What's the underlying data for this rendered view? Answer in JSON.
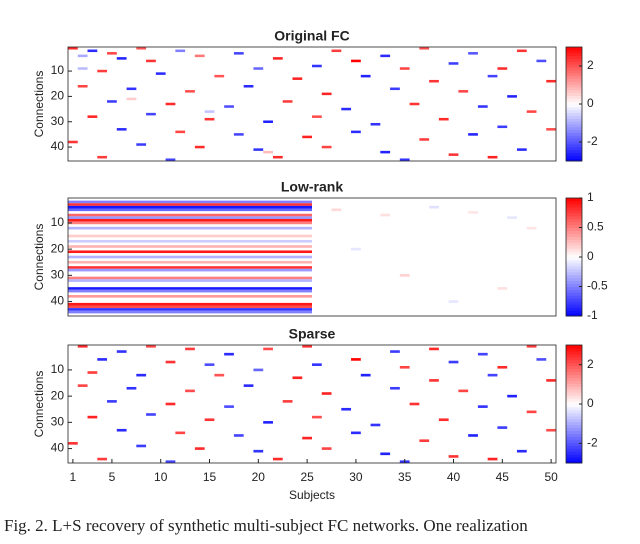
{
  "caption": "Fig. 2.  L+S recovery of synthetic multi-subject FC networks. One realization",
  "chart_data": [
    {
      "type": "heatmap",
      "title": "Original FC",
      "y_label": "Connections",
      "xlim": [
        0.5,
        50.5
      ],
      "ylim": [
        45.5,
        0.5
      ],
      "yticks": [
        10,
        20,
        30,
        40
      ],
      "clim": [
        -3,
        3
      ],
      "cticks": [
        -2,
        0,
        2
      ],
      "colors": [
        "#0000ff",
        "#ffffff",
        "#ff0000"
      ],
      "cells": [
        [
          1,
          1,
          2.5
        ],
        [
          3,
          2,
          -2.5
        ],
        [
          5,
          3,
          2.2
        ],
        [
          8,
          1,
          2
        ],
        [
          12,
          2,
          -1.5
        ],
        [
          2,
          4,
          -1
        ],
        [
          6,
          5,
          -2.6
        ],
        [
          9,
          6,
          2.4
        ],
        [
          14,
          4,
          1.6
        ],
        [
          18,
          3,
          -2.2
        ],
        [
          22,
          5,
          2.6
        ],
        [
          28,
          2,
          2.3
        ],
        [
          33,
          4,
          -2.5
        ],
        [
          37,
          1,
          2.1
        ],
        [
          42,
          3,
          -2
        ],
        [
          47,
          2,
          2.4
        ],
        [
          30,
          6,
          3
        ],
        [
          26,
          8,
          -2.4
        ],
        [
          35,
          9,
          2.2
        ],
        [
          40,
          7,
          -2.3
        ],
        [
          45,
          9,
          2.5
        ],
        [
          49,
          6,
          -2.1
        ],
        [
          4,
          10,
          2.3
        ],
        [
          10,
          11,
          -2.5
        ],
        [
          16,
          12,
          2
        ],
        [
          20,
          9,
          -1.8
        ],
        [
          24,
          13,
          2.6
        ],
        [
          31,
          12,
          -2.6
        ],
        [
          38,
          14,
          2.4
        ],
        [
          44,
          12,
          -2.2
        ],
        [
          50,
          14,
          2.5
        ],
        [
          2,
          16,
          2.2
        ],
        [
          7,
          17,
          -2.4
        ],
        [
          13,
          18,
          2.1
        ],
        [
          19,
          16,
          -2.5
        ],
        [
          27,
          19,
          2.6
        ],
        [
          34,
          17,
          -2.3
        ],
        [
          41,
          18,
          2.2
        ],
        [
          46,
          20,
          -2.6
        ],
        [
          5,
          22,
          -2.3
        ],
        [
          11,
          23,
          2.5
        ],
        [
          17,
          24,
          -2.1
        ],
        [
          23,
          22,
          2.3
        ],
        [
          29,
          25,
          -2.5
        ],
        [
          36,
          23,
          2.4
        ],
        [
          43,
          24,
          -2.4
        ],
        [
          48,
          26,
          2.2
        ],
        [
          3,
          28,
          2.6
        ],
        [
          9,
          27,
          -2.2
        ],
        [
          15,
          29,
          2.4
        ],
        [
          21,
          30,
          -2.6
        ],
        [
          26,
          28,
          2.1
        ],
        [
          32,
          31,
          -2.4
        ],
        [
          39,
          29,
          2.5
        ],
        [
          45,
          32,
          -2.3
        ],
        [
          6,
          33,
          -2.5
        ],
        [
          12,
          34,
          2.2
        ],
        [
          18,
          35,
          -2.2
        ],
        [
          25,
          36,
          2.6
        ],
        [
          30,
          34,
          -2.5
        ],
        [
          37,
          37,
          2.3
        ],
        [
          42,
          35,
          -2.6
        ],
        [
          50,
          33,
          2.1
        ],
        [
          1,
          38,
          2.4
        ],
        [
          8,
          39,
          -2.3
        ],
        [
          14,
          40,
          2.5
        ],
        [
          20,
          41,
          -2.4
        ],
        [
          27,
          40,
          2.2
        ],
        [
          33,
          42,
          -2.6
        ],
        [
          40,
          43,
          2.4
        ],
        [
          47,
          41,
          -2.5
        ],
        [
          4,
          44,
          2.3
        ],
        [
          11,
          45,
          -2.2
        ],
        [
          22,
          44,
          2.5
        ],
        [
          35,
          45,
          -2.4
        ],
        [
          44,
          44,
          2.6
        ],
        [
          2,
          9,
          -0.8
        ],
        [
          7,
          21,
          0.6
        ],
        [
          15,
          26,
          -0.7
        ],
        [
          21,
          42,
          0.8
        ]
      ]
    },
    {
      "type": "heatmap",
      "title": "Low-rank",
      "y_label": "Connections",
      "xlim": [
        0.5,
        50.5
      ],
      "ylim": [
        45.5,
        0.5
      ],
      "yticks": [
        10,
        20,
        30,
        40
      ],
      "clim": [
        -1,
        1
      ],
      "cticks": [
        -1,
        -0.5,
        0,
        0.5,
        1
      ],
      "colors": [
        "#0000ff",
        "#ffffff",
        "#ff0000"
      ],
      "x_range": [
        1,
        25
      ],
      "bands": {
        "y": [
          2,
          3,
          4,
          5,
          7,
          8,
          9,
          10,
          12,
          15,
          17,
          19,
          21,
          23,
          25,
          27,
          28,
          31,
          32,
          35,
          36,
          38,
          41,
          42,
          43,
          44
        ],
        "values": [
          -0.5,
          0.8,
          -0.9,
          -0.6,
          0.6,
          -0.4,
          0.9,
          0.5,
          -0.3,
          0.2,
          -0.2,
          0.3,
          0.9,
          -0.3,
          0.3,
          0.8,
          -0.4,
          0.5,
          -0.3,
          -0.9,
          -0.5,
          0.4,
          0.9,
          0.7,
          -0.8,
          -0.5
        ]
      },
      "cells": [
        [
          28,
          5,
          0.15
        ],
        [
          33,
          7,
          0.12
        ],
        [
          35,
          30,
          0.18
        ],
        [
          38,
          4,
          -0.12
        ],
        [
          42,
          6,
          0.1
        ],
        [
          46,
          8,
          -0.1
        ],
        [
          30,
          20,
          -0.1
        ],
        [
          45,
          35,
          0.12
        ],
        [
          40,
          40,
          -0.1
        ],
        [
          48,
          12,
          0.1
        ]
      ]
    },
    {
      "type": "heatmap",
      "title": "Sparse",
      "y_label": "Connections",
      "x_label": "Subjects",
      "xlim": [
        0.5,
        50.5
      ],
      "ylim": [
        45.5,
        0.5
      ],
      "yticks": [
        10,
        20,
        30,
        40
      ],
      "xticks": [
        1,
        5,
        10,
        15,
        20,
        25,
        30,
        35,
        40,
        45,
        50
      ],
      "clim": [
        -3,
        3
      ],
      "cticks": [
        -2,
        0,
        2
      ],
      "colors": [
        "#0000ff",
        "#ffffff",
        "#ff0000"
      ],
      "cells": [
        [
          2,
          1,
          2.5
        ],
        [
          6,
          3,
          -2.4
        ],
        [
          9,
          1,
          2.2
        ],
        [
          13,
          2,
          2.3
        ],
        [
          17,
          4,
          -2.5
        ],
        [
          21,
          2,
          2.1
        ],
        [
          25,
          1,
          2.4
        ],
        [
          30,
          6,
          3
        ],
        [
          34,
          3,
          -2.3
        ],
        [
          38,
          2,
          2.5
        ],
        [
          43,
          4,
          -2.2
        ],
        [
          48,
          1,
          2.3
        ],
        [
          4,
          6,
          -2.5
        ],
        [
          11,
          7,
          2.4
        ],
        [
          15,
          8,
          -2.1
        ],
        [
          26,
          8,
          -2.4
        ],
        [
          35,
          9,
          2.2
        ],
        [
          40,
          7,
          -2.3
        ],
        [
          45,
          9,
          2.5
        ],
        [
          49,
          6,
          -2.1
        ],
        [
          3,
          11,
          2.3
        ],
        [
          8,
          12,
          -2.5
        ],
        [
          16,
          12,
          2
        ],
        [
          20,
          10,
          -1.8
        ],
        [
          24,
          13,
          2.6
        ],
        [
          31,
          12,
          -2.6
        ],
        [
          38,
          14,
          2.4
        ],
        [
          44,
          12,
          -2.2
        ],
        [
          50,
          14,
          2.5
        ],
        [
          2,
          16,
          2.2
        ],
        [
          7,
          17,
          -2.4
        ],
        [
          13,
          18,
          2.1
        ],
        [
          19,
          16,
          -2.5
        ],
        [
          27,
          19,
          2.6
        ],
        [
          34,
          17,
          -2.3
        ],
        [
          41,
          18,
          2.2
        ],
        [
          46,
          20,
          -2.6
        ],
        [
          5,
          22,
          -2.3
        ],
        [
          11,
          23,
          2.5
        ],
        [
          17,
          24,
          -2.1
        ],
        [
          23,
          22,
          2.3
        ],
        [
          29,
          25,
          -2.5
        ],
        [
          36,
          23,
          2.4
        ],
        [
          43,
          24,
          -2.4
        ],
        [
          48,
          26,
          2.2
        ],
        [
          3,
          28,
          2.6
        ],
        [
          9,
          27,
          -2.2
        ],
        [
          15,
          29,
          2.4
        ],
        [
          21,
          30,
          -2.6
        ],
        [
          26,
          28,
          2.1
        ],
        [
          32,
          31,
          -2.4
        ],
        [
          39,
          29,
          2.5
        ],
        [
          45,
          32,
          -2.3
        ],
        [
          6,
          33,
          -2.5
        ],
        [
          12,
          34,
          2.2
        ],
        [
          18,
          35,
          -2.2
        ],
        [
          25,
          36,
          2.6
        ],
        [
          30,
          34,
          -2.5
        ],
        [
          37,
          37,
          2.3
        ],
        [
          42,
          35,
          -2.6
        ],
        [
          50,
          33,
          2.1
        ],
        [
          1,
          38,
          2.4
        ],
        [
          8,
          39,
          -2.3
        ],
        [
          14,
          40,
          2.5
        ],
        [
          20,
          41,
          -2.4
        ],
        [
          27,
          40,
          2.2
        ],
        [
          33,
          42,
          -2.6
        ],
        [
          40,
          43,
          2.4
        ],
        [
          47,
          41,
          -2.5
        ],
        [
          4,
          44,
          2.3
        ],
        [
          11,
          45,
          -2.2
        ],
        [
          22,
          44,
          2.5
        ],
        [
          35,
          45,
          -2.4
        ],
        [
          44,
          44,
          2.6
        ]
      ]
    }
  ]
}
